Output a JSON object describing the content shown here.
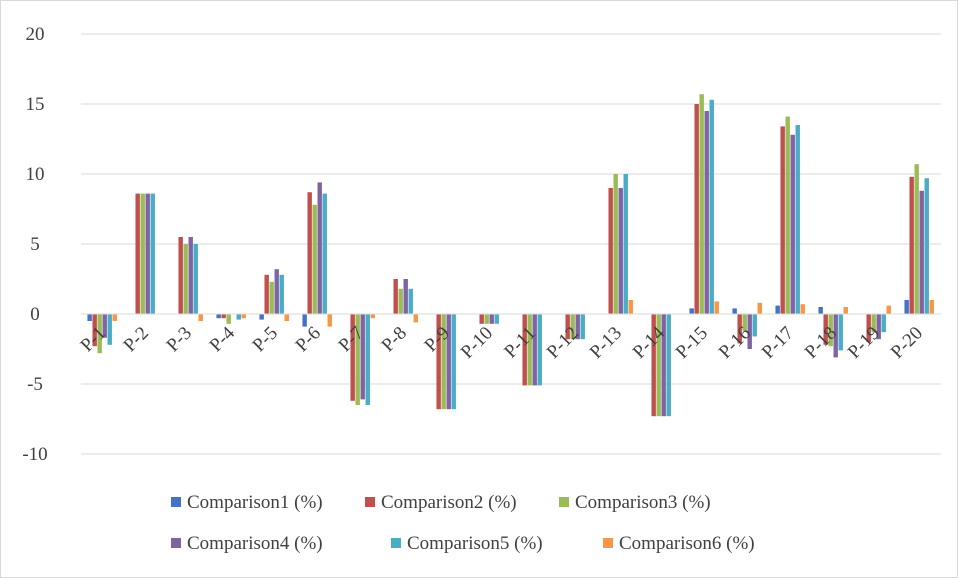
{
  "chart_data": {
    "type": "bar",
    "title": "",
    "xlabel": "",
    "ylabel": "",
    "ylim": [
      -10,
      20
    ],
    "yticks": [
      20,
      15,
      10,
      5,
      0,
      -5,
      -10
    ],
    "grid": true,
    "legend_position": "bottom",
    "categories": [
      "P-1",
      "P-2",
      "P-3",
      "P-4",
      "P-5",
      "P-6",
      "P-7",
      "P-8",
      "P-9",
      "P-10",
      "P-11",
      "P-12",
      "P-13",
      "P-14",
      "P-15",
      "P-16",
      "P-17",
      "P-18",
      "P-19",
      "P-20"
    ],
    "series": [
      {
        "name": "Comparison1   (%)",
        "color": "#4472c4",
        "values": [
          -0.5,
          0,
          0,
          -0.3,
          -0.4,
          -0.9,
          0,
          0,
          0,
          0,
          0,
          0,
          0,
          0,
          0.4,
          0.4,
          0.6,
          0.5,
          0,
          1.0
        ]
      },
      {
        "name": "Comparison2   (%)",
        "color": "#c0504d",
        "values": [
          -2.3,
          8.6,
          5.5,
          -0.3,
          2.8,
          8.7,
          -6.2,
          2.5,
          -6.8,
          -0.7,
          -5.1,
          -1.8,
          9.0,
          -7.3,
          15.0,
          -2.1,
          13.4,
          -2.2,
          -2.0,
          9.8
        ]
      },
      {
        "name": "Comparison3   (%)",
        "color": "#9bbb59",
        "values": [
          -2.8,
          8.6,
          5.0,
          -0.7,
          2.3,
          7.8,
          -6.5,
          1.8,
          -6.8,
          -0.7,
          -5.1,
          -1.8,
          10.0,
          -7.3,
          15.7,
          -1.2,
          14.1,
          -2.3,
          -1.3,
          10.7
        ]
      },
      {
        "name": "Comparison4   (%)",
        "color": "#8064a2",
        "values": [
          -1.7,
          8.6,
          5.5,
          0,
          3.2,
          9.4,
          -6.1,
          2.5,
          -6.8,
          -0.7,
          -5.1,
          -1.8,
          9.0,
          -7.3,
          14.5,
          -2.5,
          12.8,
          -3.1,
          -1.8,
          8.8
        ]
      },
      {
        "name": "Comparison5   (%)",
        "color": "#4bacc6",
        "values": [
          -2.2,
          8.6,
          5.0,
          -0.4,
          2.8,
          8.6,
          -6.5,
          1.8,
          -6.8,
          -0.7,
          -5.1,
          -1.8,
          10.0,
          -7.3,
          15.3,
          -1.6,
          13.5,
          -2.6,
          -1.3,
          9.7
        ]
      },
      {
        "name": "Comparison6   (%)",
        "color": "#f79646",
        "values": [
          -0.5,
          0,
          -0.5,
          -0.3,
          -0.5,
          -0.9,
          -0.3,
          -0.6,
          0,
          0,
          0,
          0,
          1.0,
          0,
          0.9,
          0.8,
          0.7,
          0.5,
          0.6,
          1.0
        ]
      }
    ]
  }
}
